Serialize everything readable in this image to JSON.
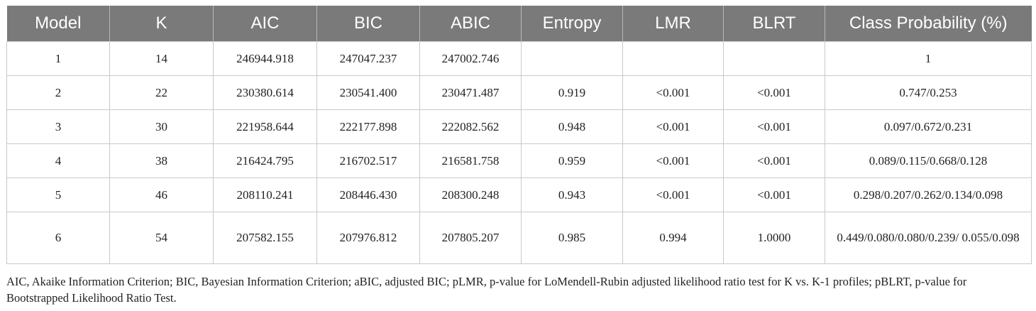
{
  "table": {
    "headers": [
      "Model",
      "K",
      "AIC",
      "BIC",
      "ABIC",
      "Entropy",
      "LMR",
      "BLRT",
      "Class Probability (%)"
    ],
    "rows": [
      [
        "1",
        "14",
        "246944.918",
        "247047.237",
        "247002.746",
        "",
        "",
        "",
        "1"
      ],
      [
        "2",
        "22",
        "230380.614",
        "230541.400",
        "230471.487",
        "0.919",
        "<0.001",
        "<0.001",
        "0.747/0.253"
      ],
      [
        "3",
        "30",
        "221958.644",
        "222177.898",
        "222082.562",
        "0.948",
        "<0.001",
        "<0.001",
        "0.097/0.672/0.231"
      ],
      [
        "4",
        "38",
        "216424.795",
        "216702.517",
        "216581.758",
        "0.959",
        "<0.001",
        "<0.001",
        "0.089/0.115/0.668/0.128"
      ],
      [
        "5",
        "46",
        "208110.241",
        "208446.430",
        "208300.248",
        "0.943",
        "<0.001",
        "<0.001",
        "0.298/0.207/0.262/0.134/0.098"
      ],
      [
        "6",
        "54",
        "207582.155",
        "207976.812",
        "207805.207",
        "0.985",
        "0.994",
        "1.0000",
        "0.449/0.080/0.080/0.239/ 0.055/0.098"
      ]
    ]
  },
  "footnote": "AIC, Akaike Information Criterion; BIC, Bayesian Information Criterion; aBIC, adjusted BIC; pLMR, p-value for LoMendell-Rubin adjusted likelihood ratio test for K vs. K-1 profiles; pBLRT, p-value for Bootstrapped Likelihood Ratio Test.",
  "colors": {
    "header_bg": "#7a7a7a",
    "header_text": "#ffffff",
    "grid": "#c9c9c9",
    "text": "#222222"
  }
}
